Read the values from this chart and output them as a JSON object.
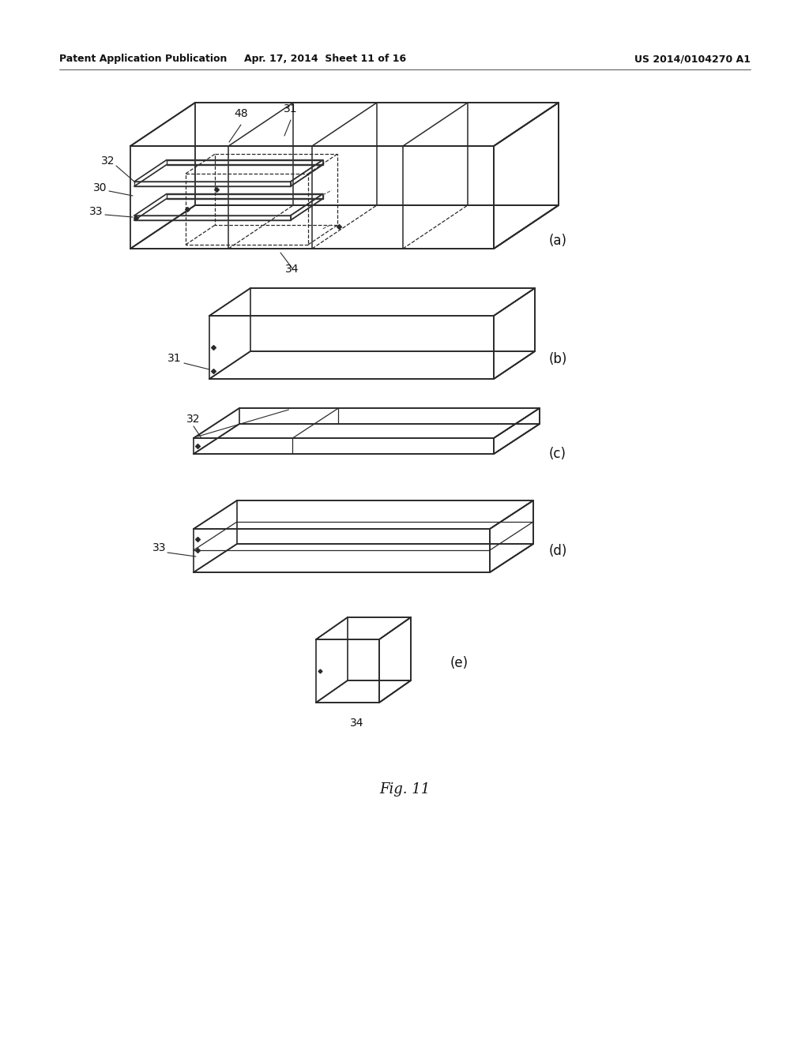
{
  "bg": "#ffffff",
  "lc": "#2a2a2a",
  "lw": 1.1,
  "header_left": "Patent Application Publication",
  "header_mid": "Apr. 17, 2014  Sheet 11 of 16",
  "header_right": "US 2014/0104270 A1",
  "footer": "Fig. 11"
}
